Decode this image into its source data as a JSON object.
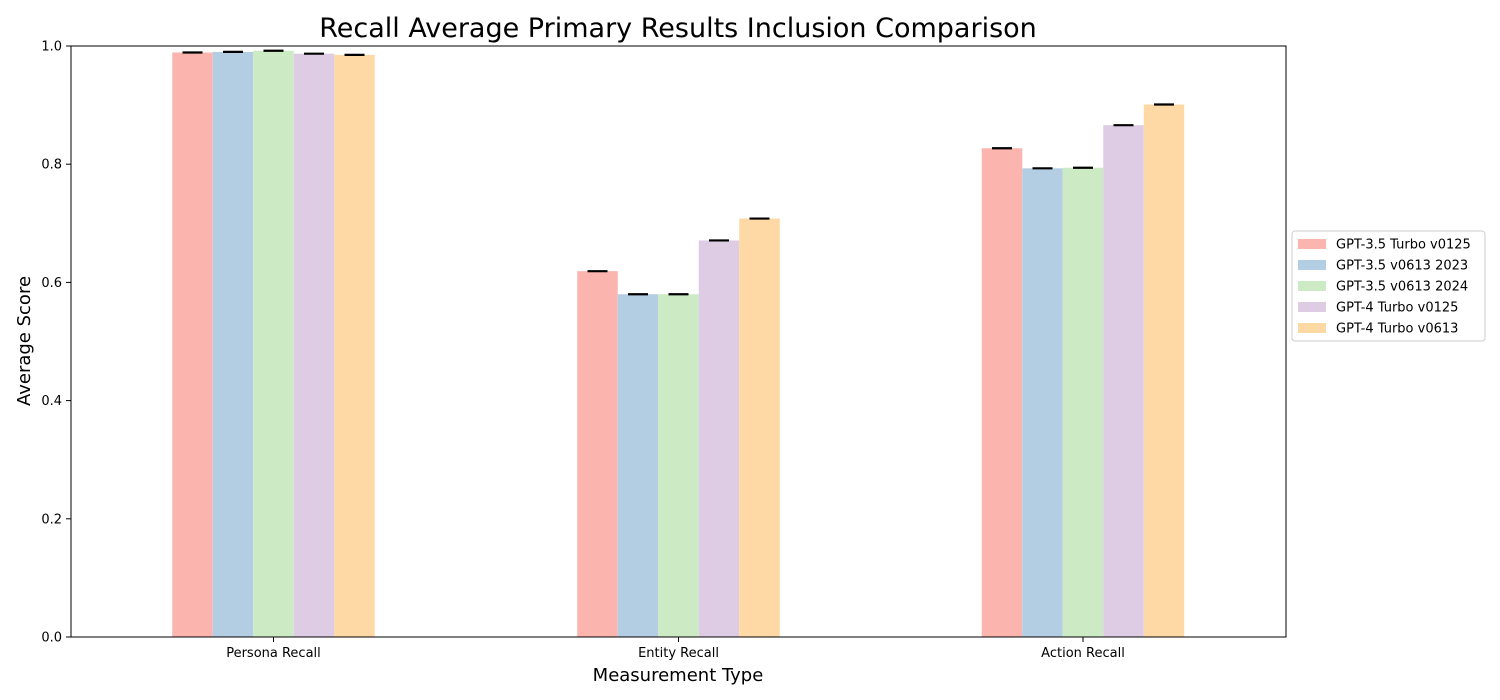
{
  "chart_data": {
    "type": "bar",
    "title": "Recall Average Primary Results Inclusion Comparison",
    "xlabel": "Measurement Type",
    "ylabel": "Average Score",
    "ylim": [
      0,
      1.0
    ],
    "yticks": [
      "0.0",
      "0.2",
      "0.4",
      "0.6",
      "0.8",
      "1.0"
    ],
    "categories": [
      "Persona Recall",
      "Entity Recall",
      "Action Recall"
    ],
    "series": [
      {
        "name": "GPT-3.5 Turbo v0125",
        "color": "#fbb4ae",
        "values": [
          0.989,
          0.619,
          0.827
        ],
        "errors": [
          0.001,
          0.001,
          0.001
        ]
      },
      {
        "name": "GPT-3.5 v0613 2023",
        "color": "#b3cde3",
        "values": [
          0.99,
          0.58,
          0.793
        ],
        "errors": [
          0.001,
          0.001,
          0.001
        ]
      },
      {
        "name": "GPT-3.5 v0613 2024",
        "color": "#ccebc5",
        "values": [
          0.992,
          0.58,
          0.794
        ],
        "errors": [
          0.001,
          0.001,
          0.001
        ]
      },
      {
        "name": "GPT-4 Turbo v0125",
        "color": "#decbe4",
        "values": [
          0.987,
          0.671,
          0.866
        ],
        "errors": [
          0.001,
          0.001,
          0.001
        ]
      },
      {
        "name": "GPT-4 Turbo v0613",
        "color": "#fed9a6",
        "values": [
          0.985,
          0.708,
          0.901
        ],
        "errors": [
          0.001,
          0.001,
          0.001
        ]
      }
    ],
    "grid": false,
    "legend_position": "right"
  }
}
